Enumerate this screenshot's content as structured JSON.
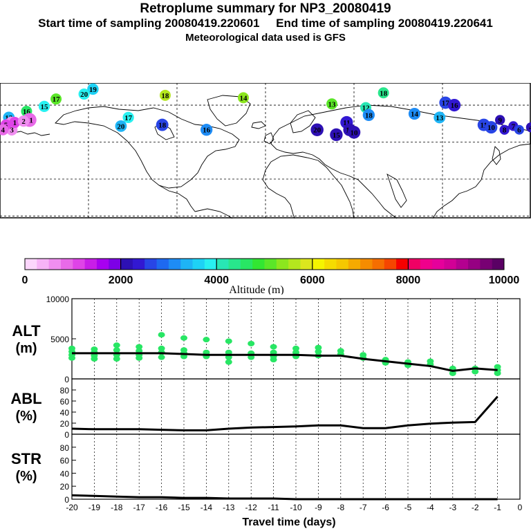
{
  "header": {
    "title": "Retroplume summary for NP3_20080419",
    "start_label": "Start time of sampling 20080419.220601",
    "end_label": "End time of sampling 20080419.220641",
    "met_label": "Meteorological data used is GFS"
  },
  "colorbar": {
    "label": "Altitude (m)",
    "ticks": [
      "0",
      "2000",
      "4000",
      "6000",
      "8000",
      "10000"
    ],
    "colors": [
      "#fcd6fc",
      "#f7b3f7",
      "#f08ef0",
      "#e86ae8",
      "#df44e8",
      "#c81ee8",
      "#a800f0",
      "#7d00e6",
      "#2d10b4",
      "#3218d2",
      "#2845e6",
      "#1e69f0",
      "#1e8cf5",
      "#1eb4f5",
      "#1ed2f5",
      "#28f0f0",
      "#28e6b4",
      "#28e68c",
      "#28e664",
      "#32e632",
      "#5ae628",
      "#8ce61e",
      "#b4e61e",
      "#dce61e",
      "#f5f500",
      "#f5dc00",
      "#f5c800",
      "#f5aa00",
      "#f58c00",
      "#f56e00",
      "#f54600",
      "#f50000",
      "#f00064",
      "#f0008c",
      "#e6009b",
      "#d20096",
      "#b40090",
      "#960082",
      "#780073",
      "#5a0064"
    ]
  },
  "map": {
    "plume_points": [
      {
        "label": "19",
        "lon": -117,
        "lat": 73,
        "alt": 3600
      },
      {
        "label": "20",
        "lon": -123,
        "lat": 69,
        "alt": 3900
      },
      {
        "label": "17",
        "lon": -142,
        "lat": 65,
        "alt": 5200
      },
      {
        "label": "18",
        "lon": -68,
        "lat": 68,
        "alt": 5500
      },
      {
        "label": "14",
        "lon": -15,
        "lat": 66,
        "alt": 5300
      },
      {
        "label": "16",
        "lon": -162,
        "lat": 55,
        "alt": 4600
      },
      {
        "label": "15",
        "lon": -150,
        "lat": 59,
        "alt": 3800
      },
      {
        "label": "13",
        "lon": -174,
        "lat": 50,
        "alt": 3400
      },
      {
        "label": "12",
        "lon": -172,
        "lat": 45,
        "alt": 700
      },
      {
        "label": "11",
        "lon": -160,
        "lat": 48,
        "alt": 900
      },
      {
        "label": "3",
        "lon": -172,
        "lat": 40,
        "alt": 600
      },
      {
        "label": "17",
        "lon": -93,
        "lat": 50,
        "alt": 3800
      },
      {
        "label": "20",
        "lon": -98,
        "lat": 43,
        "alt": 3400
      },
      {
        "label": "18",
        "lon": -70,
        "lat": 44,
        "alt": 2600
      },
      {
        "label": "16",
        "lon": -40,
        "lat": 40,
        "alt": 3000
      },
      {
        "label": "18",
        "lon": 80,
        "lat": 70,
        "alt": 4300
      },
      {
        "label": "13",
        "lon": 45,
        "lat": 61,
        "alt": 5000
      },
      {
        "label": "12",
        "lon": 68,
        "lat": 58,
        "alt": 4200
      },
      {
        "label": "18",
        "lon": 70,
        "lat": 52,
        "alt": 3000
      },
      {
        "label": "17",
        "lon": 122,
        "lat": 62,
        "alt": 2600
      },
      {
        "label": "16",
        "lon": 128,
        "lat": 60,
        "alt": 2300
      },
      {
        "label": "14",
        "lon": 101,
        "lat": 53,
        "alt": 3100
      },
      {
        "label": "13",
        "lon": 118,
        "lat": 50,
        "alt": 3300
      },
      {
        "label": "11",
        "lon": 55,
        "lat": 46,
        "alt": 2300
      },
      {
        "label": "14",
        "lon": 57,
        "lat": 40,
        "alt": 2200
      },
      {
        "label": "20",
        "lon": 35,
        "lat": 40,
        "alt": 2100
      },
      {
        "label": "15",
        "lon": 48,
        "lat": 36,
        "alt": 2200
      },
      {
        "label": "10",
        "lon": 60,
        "lat": 38,
        "alt": 2100
      },
      {
        "label": "11",
        "lon": 148,
        "lat": 44,
        "alt": 2500
      },
      {
        "label": "10",
        "lon": 153,
        "lat": 42,
        "alt": 2500
      },
      {
        "label": "9",
        "lon": 159,
        "lat": 48,
        "alt": 2200
      },
      {
        "label": "8",
        "lon": 162,
        "lat": 40,
        "alt": 2300
      },
      {
        "label": "7",
        "lon": 168,
        "lat": 43,
        "alt": 2400
      },
      {
        "label": "6",
        "lon": 172,
        "lat": 40,
        "alt": 2500
      },
      {
        "label": "4",
        "lon": 180,
        "lat": 42,
        "alt": 2200
      },
      {
        "label": "5",
        "lon": -176,
        "lat": 44,
        "alt": 1100
      },
      {
        "label": "4",
        "lon": -178,
        "lat": 40,
        "alt": 900
      },
      {
        "label": "1",
        "lon": -170,
        "lat": 46,
        "alt": 1000
      },
      {
        "label": "2",
        "lon": -164,
        "lat": 47,
        "alt": 700
      }
    ]
  },
  "chart_data": [
    {
      "type": "line",
      "title": "ALT (m)",
      "label_line1": "ALT",
      "label_line2": "(m)",
      "ylim": [
        0,
        10000
      ],
      "yticks": [
        "10000",
        "5000",
        "0"
      ],
      "x": [
        -20,
        -19,
        -18,
        -17,
        -16,
        -15,
        -14,
        -13,
        -12,
        -11,
        -10,
        -9,
        -8,
        -7,
        -6,
        -5,
        -4,
        -3,
        -2,
        -1
      ],
      "series": [
        {
          "name": "mean altitude",
          "values": [
            3200,
            3200,
            3200,
            3200,
            3200,
            3100,
            3000,
            3000,
            3000,
            3000,
            3000,
            2900,
            2900,
            2500,
            2200,
            1900,
            1600,
            1000,
            1300,
            1100
          ]
        }
      ],
      "scatter": [
        [
          -20,
          3800
        ],
        [
          -20,
          3400
        ],
        [
          -20,
          3000
        ],
        [
          -20,
          2600
        ],
        [
          -19,
          3700
        ],
        [
          -19,
          3300
        ],
        [
          -19,
          2900
        ],
        [
          -19,
          2500
        ],
        [
          -18,
          4200
        ],
        [
          -18,
          3600
        ],
        [
          -18,
          3000
        ],
        [
          -18,
          2500
        ],
        [
          -17,
          4000
        ],
        [
          -17,
          3500
        ],
        [
          -17,
          3000
        ],
        [
          -17,
          2600
        ],
        [
          -16,
          5500
        ],
        [
          -16,
          3800
        ],
        [
          -16,
          3300
        ],
        [
          -16,
          2700
        ],
        [
          -15,
          5100
        ],
        [
          -15,
          3600
        ],
        [
          -15,
          3200
        ],
        [
          -15,
          2800
        ],
        [
          -14,
          4900
        ],
        [
          -14,
          3300
        ],
        [
          -14,
          2800
        ],
        [
          -13,
          4700
        ],
        [
          -13,
          3300
        ],
        [
          -13,
          2700
        ],
        [
          -13,
          2100
        ],
        [
          -12,
          4400
        ],
        [
          -12,
          3200
        ],
        [
          -12,
          2700
        ],
        [
          -11,
          4000
        ],
        [
          -11,
          3300
        ],
        [
          -11,
          2800
        ],
        [
          -11,
          2400
        ],
        [
          -10,
          3800
        ],
        [
          -10,
          3300
        ],
        [
          -10,
          2800
        ],
        [
          -9,
          3900
        ],
        [
          -9,
          3400
        ],
        [
          -9,
          2900
        ],
        [
          -8,
          3500
        ],
        [
          -8,
          3100
        ],
        [
          -7,
          3000
        ],
        [
          -7,
          2600
        ],
        [
          -6,
          2400
        ],
        [
          -6,
          2000
        ],
        [
          -5,
          2100
        ],
        [
          -5,
          1700
        ],
        [
          -4,
          2200
        ],
        [
          -4,
          1800
        ],
        [
          -3,
          1300
        ],
        [
          -3,
          700
        ],
        [
          -2,
          1300
        ],
        [
          -2,
          900
        ],
        [
          -1,
          1500
        ],
        [
          -1,
          1100
        ],
        [
          -1,
          700
        ]
      ]
    },
    {
      "type": "line",
      "title": "ABL (%)",
      "label_line1": "ABL",
      "label_line2": "(%)",
      "ylim": [
        0,
        100
      ],
      "yticks": [
        "80",
        "60",
        "40",
        "20",
        "0"
      ],
      "x": [
        -20,
        -19,
        -18,
        -17,
        -16,
        -15,
        -14,
        -13,
        -12,
        -11,
        -10,
        -9,
        -8,
        -7,
        -6,
        -5,
        -4,
        -3,
        -2,
        -1
      ],
      "series": [
        {
          "name": "ABL fraction",
          "values": [
            10,
            9,
            9,
            9,
            8,
            7,
            7,
            10,
            12,
            13,
            14,
            16,
            16,
            11,
            11,
            16,
            19,
            21,
            22,
            68
          ]
        }
      ]
    },
    {
      "type": "line",
      "title": "STR (%)",
      "label_line1": "STR",
      "label_line2": "(%)",
      "ylim": [
        0,
        100
      ],
      "yticks": [
        "80",
        "60",
        "40",
        "20",
        "0"
      ],
      "x": [
        -20,
        -19,
        -18,
        -17,
        -16,
        -15,
        -14,
        -13,
        -12,
        -11,
        -10,
        -9,
        -8,
        -7,
        -6,
        -5,
        -4,
        -3,
        -2,
        -1
      ],
      "series": [
        {
          "name": "stratosphere fraction",
          "values": [
            6,
            5,
            4,
            3,
            3,
            2,
            2,
            1,
            1,
            1,
            0,
            0,
            0,
            0,
            0,
            0,
            0,
            0,
            0,
            0
          ]
        }
      ],
      "xlabel": "Travel time (days)",
      "xticks": [
        "-20",
        "-19",
        "-18",
        "-17",
        "-16",
        "-15",
        "-14",
        "-13",
        "-12",
        "-11",
        "-10",
        "-9",
        "-8",
        "-7",
        "-6",
        "-5",
        "-4",
        "-3",
        "-2",
        "-1",
        "0"
      ]
    }
  ]
}
